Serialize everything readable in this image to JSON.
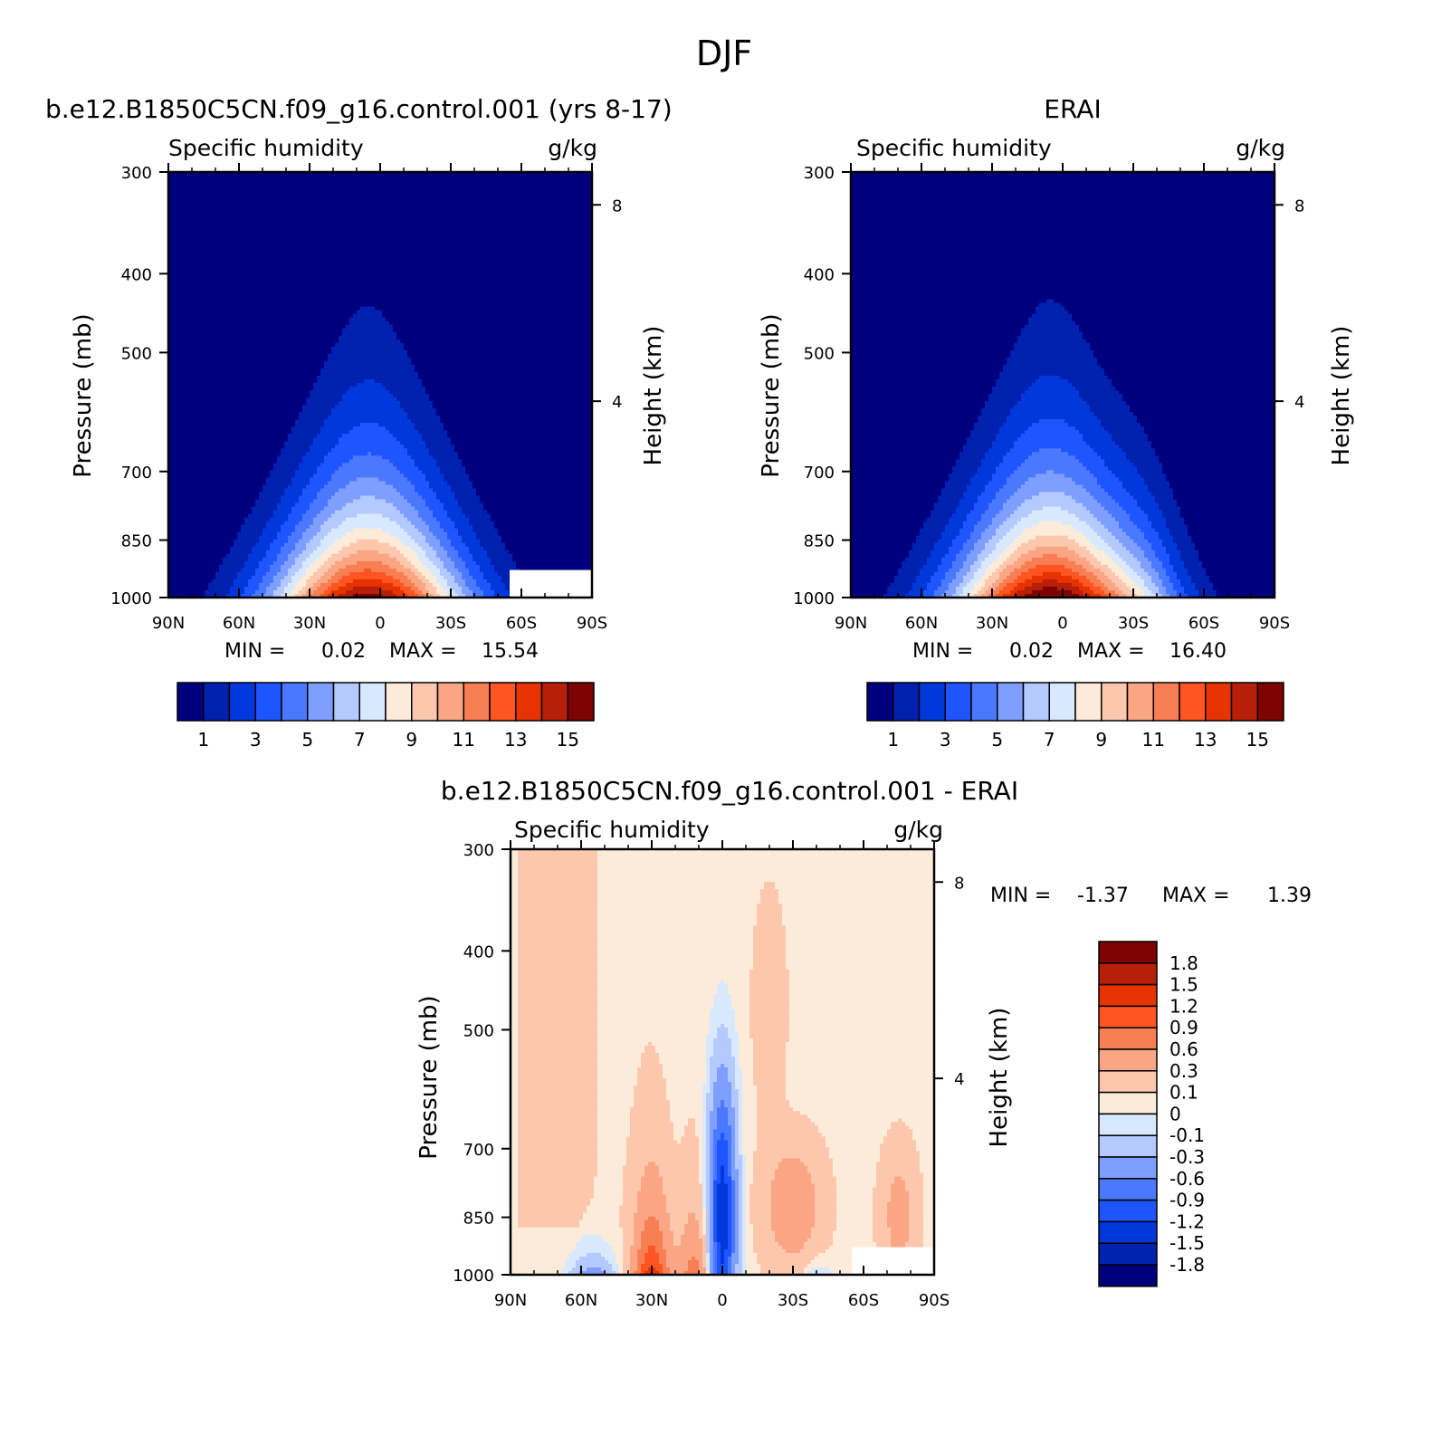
{
  "figure": {
    "title": "DJF",
    "colors": {
      "abs_levels": [
        "#00007f",
        "#0020b0",
        "#0038dc",
        "#1f55ff",
        "#4a78ff",
        "#7e9fff",
        "#b4c9ff",
        "#d8e9ff",
        "#fdebd9",
        "#fcc7ad",
        "#faa684",
        "#f87f53",
        "#ff5522",
        "#e63300",
        "#b81f08",
        "#7e0303"
      ],
      "diff_levels": [
        "#00007f",
        "#0022b0",
        "#0038dc",
        "#1f55ff",
        "#4a78ff",
        "#7e9fff",
        "#b4c9ff",
        "#d8e9ff",
        "#fdebd9",
        "#fcc7ad",
        "#faa684",
        "#f87f53",
        "#ff5522",
        "#e63300",
        "#b81f08",
        "#7e0303"
      ]
    }
  },
  "chart_data": [
    {
      "type": "heatmap",
      "case": "b.e12.B1850C5CN.f09_g16.control.001 (yrs 8-17)",
      "title": "Specific humidity",
      "units": "g/kg",
      "xlabel": "",
      "ylabel": "Pressure (mb)",
      "ylabel_right": "Height (km)",
      "x_ticks": [
        "90N",
        "60N",
        "30N",
        "0",
        "30S",
        "60S",
        "90S"
      ],
      "y_ticks": [
        "300",
        "400",
        "500",
        "700",
        "850",
        "1000"
      ],
      "y_right_ticks": [
        "8",
        "4"
      ],
      "ylim": [
        1000,
        300
      ],
      "y_scale": "log",
      "xlim": [
        90,
        -90
      ],
      "min_label": "MIN =",
      "max_label": "MAX =",
      "min": "0.02",
      "max": "15.54",
      "peak_latitude": 5,
      "peak_value": 15.54,
      "colorbar_labels": [
        "1",
        "3",
        "5",
        "7",
        "9",
        "11",
        "13",
        "15"
      ],
      "colorbar_bounds": [
        1,
        2,
        3,
        4,
        5,
        6,
        7,
        8,
        9,
        10,
        11,
        12,
        13,
        14,
        15
      ],
      "missing_region": "surface 55S-90S below 900 mb"
    },
    {
      "type": "heatmap",
      "case": "ERAI",
      "title": "Specific humidity",
      "units": "g/kg",
      "xlabel": "",
      "ylabel": "Pressure (mb)",
      "ylabel_right": "Height (km)",
      "x_ticks": [
        "90N",
        "60N",
        "30N",
        "0",
        "30S",
        "60S",
        "90S"
      ],
      "y_ticks": [
        "300",
        "400",
        "500",
        "700",
        "850",
        "1000"
      ],
      "y_right_ticks": [
        "8",
        "4"
      ],
      "ylim": [
        1000,
        300
      ],
      "y_scale": "log",
      "xlim": [
        90,
        -90
      ],
      "min_label": "MIN =",
      "max_label": "MAX =",
      "min": "0.02",
      "max": "16.40",
      "peak_latitude": 5,
      "peak_value": 16.4,
      "colorbar_labels": [
        "1",
        "3",
        "5",
        "7",
        "9",
        "11",
        "13",
        "15"
      ],
      "colorbar_bounds": [
        1,
        2,
        3,
        4,
        5,
        6,
        7,
        8,
        9,
        10,
        11,
        12,
        13,
        14,
        15
      ]
    },
    {
      "type": "heatmap",
      "case": "b.e12.B1850C5CN.f09_g16.control.001 - ERAI",
      "title": "Specific humidity",
      "units": "g/kg",
      "xlabel": "",
      "ylabel": "Pressure (mb)",
      "ylabel_right": "Height (km)",
      "x_ticks": [
        "90N",
        "60N",
        "30N",
        "0",
        "30S",
        "60S",
        "90S"
      ],
      "y_ticks": [
        "300",
        "400",
        "500",
        "700",
        "850",
        "1000"
      ],
      "y_right_ticks": [
        "8",
        "4"
      ],
      "ylim": [
        1000,
        300
      ],
      "y_scale": "log",
      "xlim": [
        90,
        -90
      ],
      "min_label": "MIN =",
      "max_label": "MAX =",
      "min": "-1.37",
      "max": "1.39",
      "colorbar_labels": [
        "1.8",
        "1.5",
        "1.2",
        "0.9",
        "0.6",
        "0.3",
        "0.1",
        "0",
        "-0.1",
        "-0.3",
        "-0.6",
        "-0.9",
        "-1.2",
        "-1.5",
        "-1.8"
      ],
      "colorbar_bounds": [
        1.8,
        1.5,
        1.2,
        0.9,
        0.6,
        0.3,
        0.1,
        0,
        -0.1,
        -0.3,
        -0.6,
        -0.9,
        -1.2,
        -1.5,
        -1.8
      ]
    }
  ]
}
